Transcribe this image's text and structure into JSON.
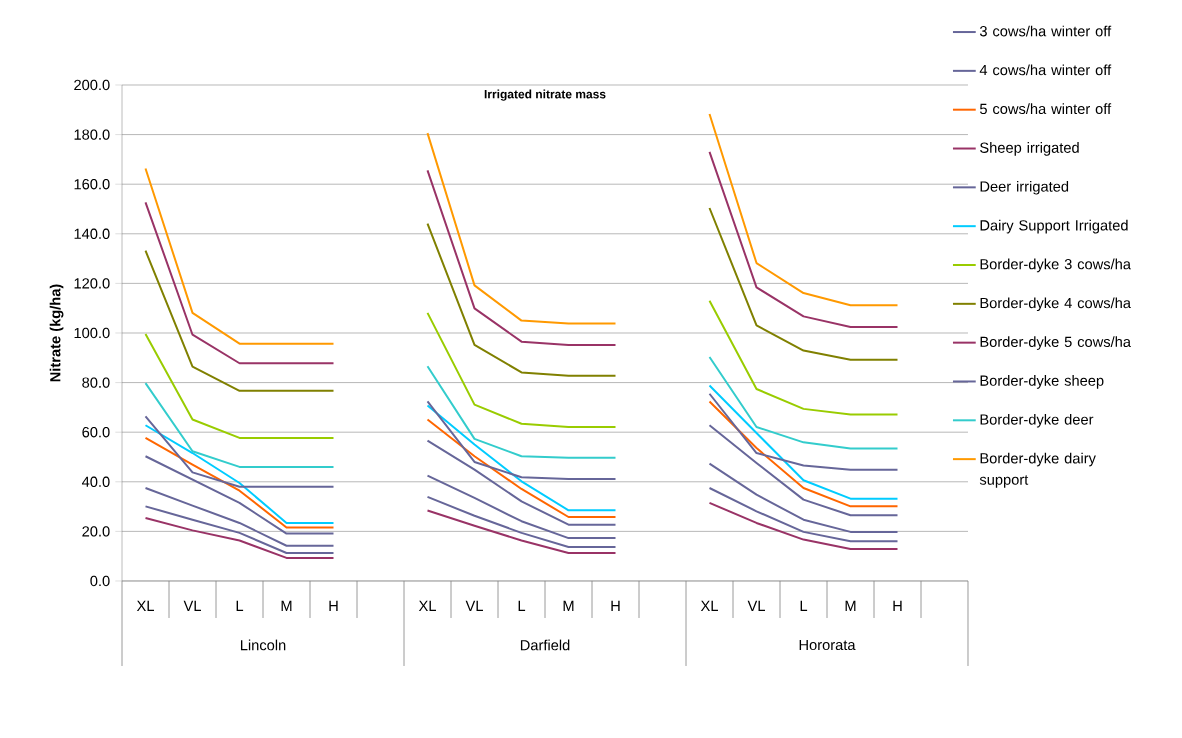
{
  "chart_data": {
    "type": "line",
    "title": "Irrigated nitrate mass",
    "ylabel": "Nitrate (kg/ha)",
    "categories": [
      "XL",
      "VL",
      "L",
      "M",
      "H",
      null,
      "XL",
      "VL",
      "L",
      "M",
      "H",
      null,
      "XL",
      "VL",
      "L",
      "M",
      "H",
      null
    ],
    "annotations": [
      "Lincoln",
      "Darfield",
      "Hororata"
    ],
    "ylim": [
      0,
      200
    ],
    "yticks": [
      {
        "value": 0,
        "label": "0.0"
      },
      {
        "value": 20,
        "label": "20.0"
      },
      {
        "value": 40,
        "label": "40.0"
      },
      {
        "value": 60,
        "label": "60.0"
      },
      {
        "value": 80,
        "label": "80.0"
      },
      {
        "value": 100,
        "label": "100.0"
      },
      {
        "value": 120,
        "label": "120.0"
      },
      {
        "value": 140,
        "label": "140.0"
      },
      {
        "value": 160,
        "label": "160.0"
      },
      {
        "value": 180,
        "label": "180.0"
      },
      {
        "value": 200,
        "label": "200.0"
      }
    ],
    "grid": "y",
    "legend": "right",
    "series": [
      {
        "name": "3 cows/ha winter off",
        "color": "#666699",
        "values": [
          37.5,
          30.4,
          23.4,
          14.2,
          14.2,
          null,
          42.5,
          33.5,
          24.1,
          17.3,
          17.3,
          null,
          47.3,
          34.8,
          24.7,
          19.8,
          19.8,
          null
        ]
      },
      {
        "name": "4 cows/ha winter off",
        "color": "#666699",
        "values": [
          50.3,
          40.9,
          31.5,
          19.1,
          19.1,
          null,
          56.6,
          44.9,
          32.1,
          22.7,
          22.7,
          null,
          62.8,
          47.6,
          32.8,
          26.5,
          26.5,
          null
        ]
      },
      {
        "name": "5 cows/ha winter off",
        "color": "#ff6600",
        "values": [
          57.7,
          46.9,
          36.4,
          21.6,
          21.6,
          null,
          65.1,
          50.3,
          37.1,
          25.8,
          25.8,
          null,
          72.4,
          53.6,
          37.5,
          30.1,
          30.1,
          null
        ]
      },
      {
        "name": "Sheep irrigated",
        "color": "#993366",
        "values": [
          25.4,
          20.4,
          16.3,
          9.3,
          9.3,
          null,
          28.4,
          22.3,
          16.3,
          11.3,
          11.3,
          null,
          31.5,
          23.4,
          16.7,
          12.9,
          12.9,
          null
        ]
      },
      {
        "name": "Deer irrigated",
        "color": "#666699",
        "values": [
          30.1,
          24.7,
          19.4,
          11.3,
          11.3,
          null,
          33.9,
          26.3,
          19.4,
          13.7,
          13.7,
          null,
          37.5,
          28.1,
          19.8,
          16.0,
          16.0,
          null
        ]
      },
      {
        "name": "Dairy Support Irrigated",
        "color": "#00ccff",
        "values": [
          62.8,
          51.6,
          39.5,
          23.4,
          23.4,
          null,
          70.8,
          55.0,
          40.2,
          28.5,
          28.5,
          null,
          78.8,
          59.7,
          40.6,
          33.2,
          33.2,
          null
        ]
      },
      {
        "name": "Border-dyke 3 cows/ha",
        "color": "#99cc00",
        "values": [
          99.6,
          65.1,
          57.7,
          57.7,
          57.7,
          null,
          108.1,
          71.1,
          63.4,
          62.1,
          62.1,
          null,
          113.0,
          77.4,
          69.4,
          67.1,
          67.1,
          null
        ]
      },
      {
        "name": "Border-dyke 4 cows/ha",
        "color": "#808000",
        "values": [
          133.2,
          86.4,
          76.7,
          76.7,
          76.7,
          null,
          144.1,
          95.2,
          84.1,
          82.8,
          82.8,
          null,
          150.4,
          103.1,
          92.9,
          89.2,
          89.2,
          null
        ]
      },
      {
        "name": "Border-dyke 5 cows/ha",
        "color": "#993366",
        "values": [
          152.7,
          99.3,
          87.8,
          87.8,
          87.8,
          null,
          165.6,
          109.9,
          96.5,
          95.2,
          95.2,
          null,
          173.0,
          118.4,
          106.7,
          102.4,
          102.4,
          null
        ]
      },
      {
        "name": "Border-dyke sheep",
        "color": "#666699",
        "values": [
          66.4,
          43.8,
          38.0,
          38.0,
          38.0,
          null,
          72.4,
          48.0,
          41.8,
          41.1,
          41.1,
          null,
          75.5,
          51.6,
          46.6,
          44.9,
          44.9,
          null
        ]
      },
      {
        "name": "Border-dyke deer",
        "color": "#33cccc",
        "values": [
          79.8,
          52.3,
          46.0,
          46.0,
          46.0,
          null,
          86.6,
          57.3,
          50.3,
          49.7,
          49.7,
          null,
          90.3,
          62.1,
          55.9,
          53.4,
          53.4,
          null
        ]
      },
      {
        "name": "Border-dyke dairy support",
        "color": "#ff9900",
        "values": [
          166.3,
          108.1,
          95.7,
          95.7,
          95.7,
          null,
          180.6,
          119.2,
          105.0,
          103.8,
          103.8,
          null,
          188.3,
          128.2,
          116.1,
          111.2,
          111.2,
          null
        ]
      }
    ]
  }
}
